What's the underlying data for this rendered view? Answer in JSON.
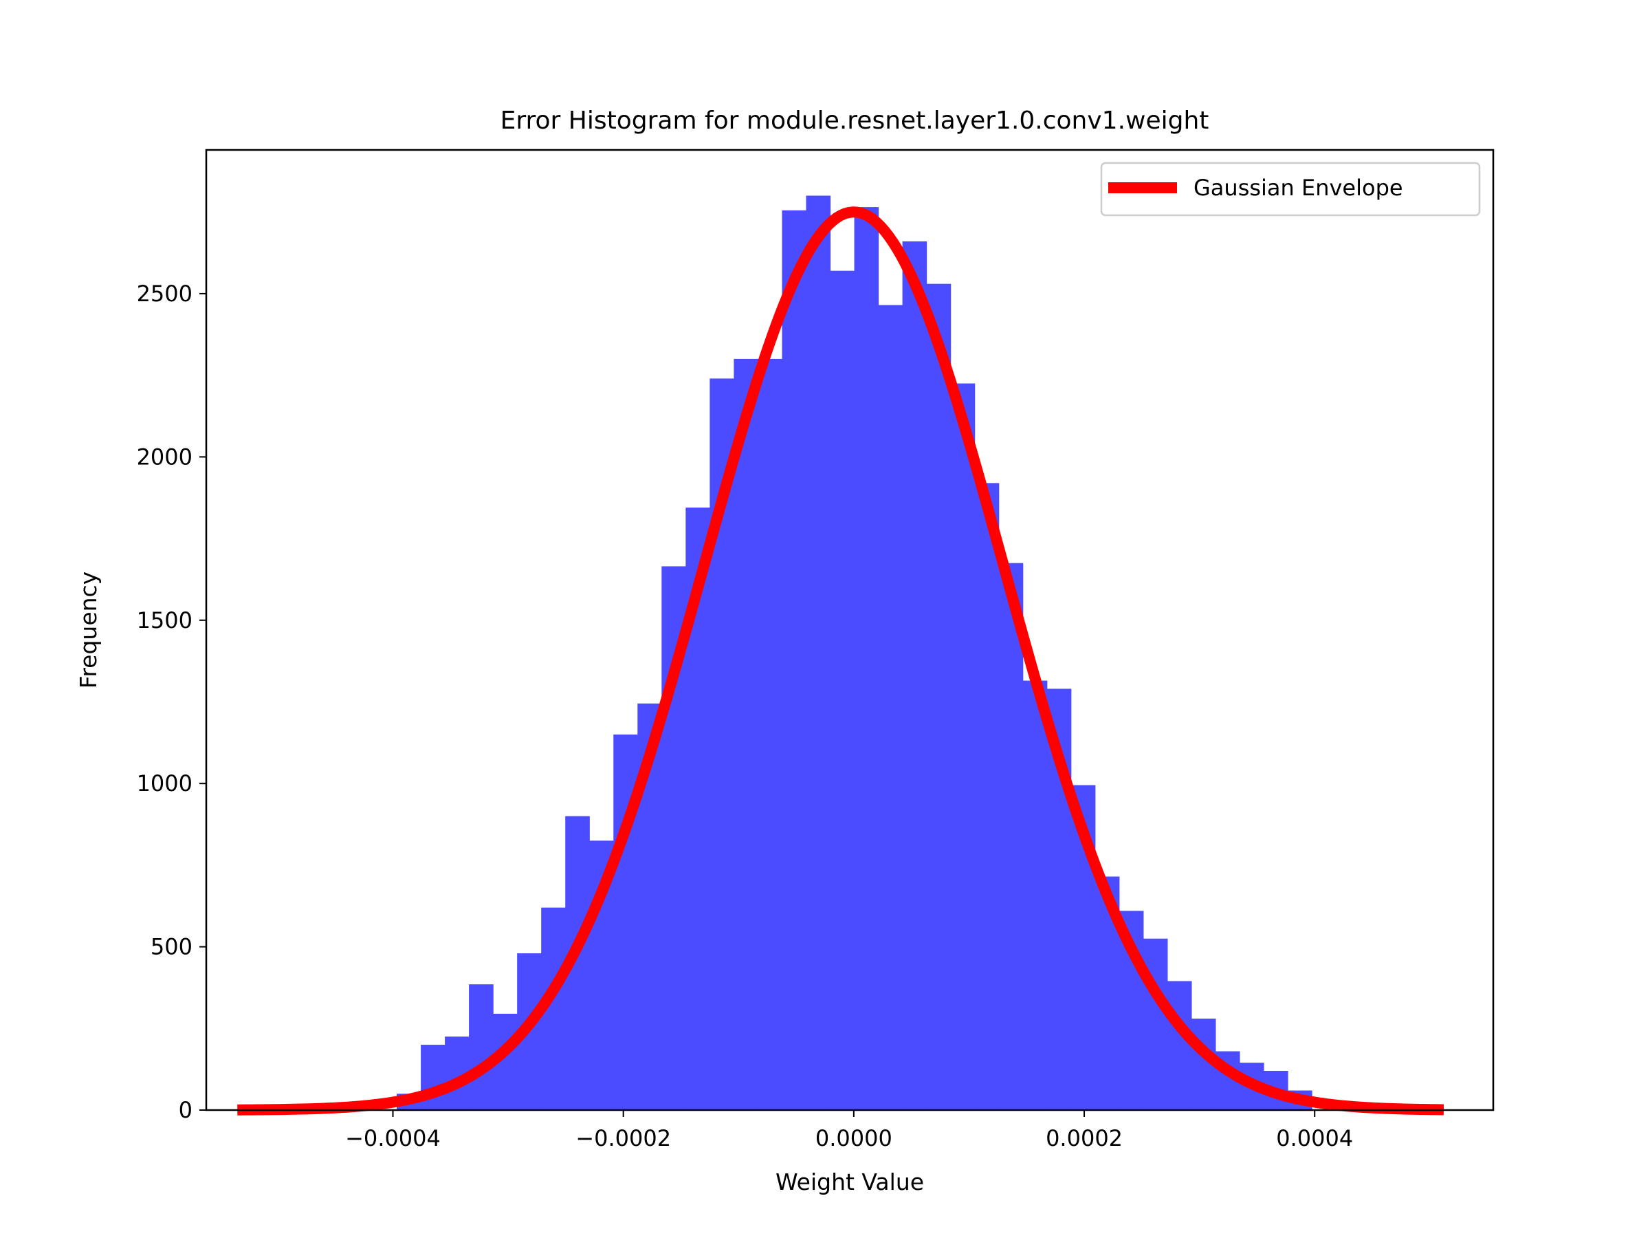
{
  "chart_data": {
    "type": "bar",
    "title": "Error Histogram for module.resnet.layer1.0.conv1.weight",
    "xlabel": "Weight Value",
    "ylabel": "Frequency",
    "xlim": [
      -0.000562,
      0.000555
    ],
    "ylim": [
      0,
      2940
    ],
    "x_ticks": [
      -0.0004,
      -0.0002,
      0.0,
      0.0002,
      0.0004
    ],
    "x_tick_labels": [
      "−0.0004",
      "−0.0002",
      "0.0000",
      "0.0002",
      "0.0004"
    ],
    "y_ticks": [
      0,
      500,
      1000,
      1500,
      2000,
      2500
    ],
    "y_tick_labels": [
      "0",
      "500",
      "1000",
      "1500",
      "2000",
      "2500"
    ],
    "grid": false,
    "legend_position": "top-right",
    "histogram": {
      "color": "#4b4bff",
      "bin_width": 2.09e-05,
      "bin_starts": [
        -0.0003967,
        -0.0003758,
        -0.0003549,
        -0.000334,
        -0.0003131,
        -0.0002922,
        -0.0002713,
        -0.0002504,
        -0.0002295,
        -0.0002086,
        -0.0001877,
        -0.0001668,
        -0.0001459,
        -0.000125,
        -0.0001041,
        -8.32e-05,
        -6.23e-05,
        -4.14e-05,
        -2.05e-05,
        4e-07,
        2.13e-05,
        4.22e-05,
        6.31e-05,
        8.4e-05,
        0.0001049,
        0.0001258,
        0.0001467,
        0.0001676,
        0.0001885,
        0.0002094,
        0.0002303,
        0.0002512,
        0.0002721,
        0.000293,
        0.0003139,
        0.0003348,
        0.0003557,
        0.0003766
      ],
      "values": [
        50,
        200,
        225,
        385,
        295,
        480,
        620,
        900,
        825,
        1150,
        1245,
        1665,
        1845,
        2240,
        2300,
        2300,
        2755,
        2800,
        2570,
        2765,
        2465,
        2660,
        2530,
        2225,
        1920,
        1675,
        1315,
        1290,
        995,
        715,
        610,
        525,
        395,
        280,
        180,
        145,
        120,
        60
      ]
    },
    "series": [
      {
        "name": "Gaussian Envelope",
        "type": "line",
        "color": "#ff0000",
        "mean": 0.0,
        "std": 0.00013,
        "peak": 2750,
        "x_range": [
          -0.000535,
          0.000512
        ]
      }
    ]
  }
}
